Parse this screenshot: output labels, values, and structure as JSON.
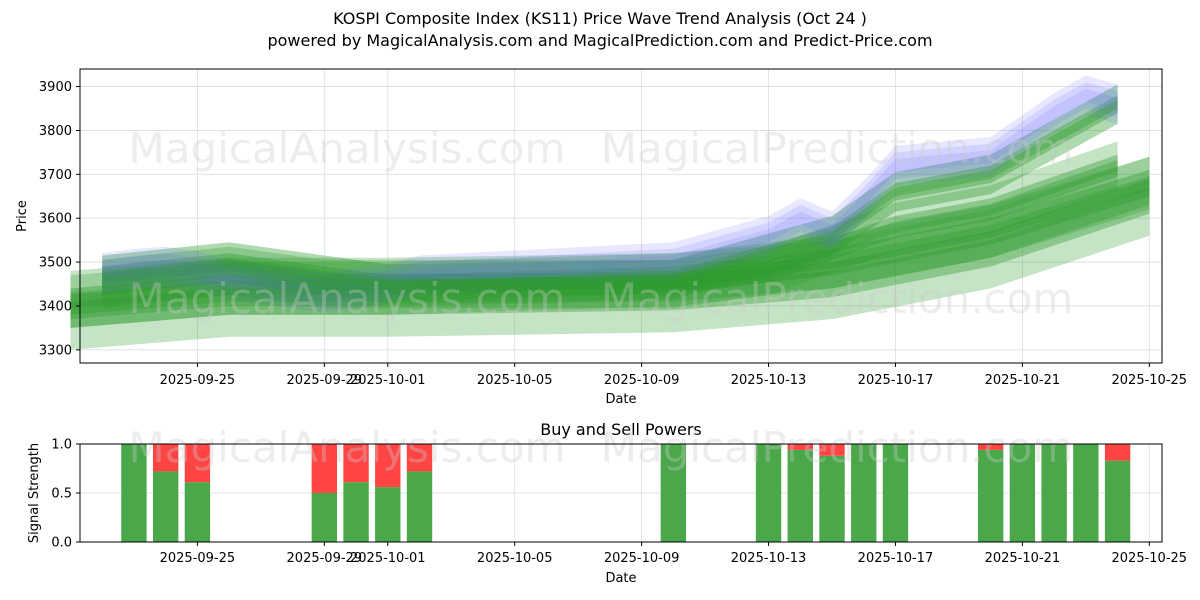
{
  "title": "KOSPI Composite Index (KS11) Price Wave Trend Analysis (Oct 24 )",
  "subtitle": "powered by MagicalAnalysis.com and MagicalPrediction.com and Predict-Price.com",
  "watermarks": [
    "MagicalAnalysis.com",
    "MagicalPrediction.com"
  ],
  "colors": {
    "green": "#2e9a2e",
    "blue": "#6b6bff",
    "buy": "#4aa84a",
    "sell": "#ff4444",
    "grid": "#dddddd"
  },
  "top_panel": {
    "ylabel": "Price",
    "xlabel": "Date"
  },
  "bottom_panel": {
    "title": "Buy and Sell Powers",
    "ylabel": "Signal Strength",
    "xlabel": "Date"
  },
  "chart_data": [
    {
      "type": "area",
      "title": "KOSPI Composite Index (KS11) Price Wave Trend Analysis (Oct 24 )",
      "xlabel": "Date",
      "ylabel": "Price",
      "xlim": [
        "2025-09-21",
        "2025-10-25"
      ],
      "ylim": [
        3270,
        3940
      ],
      "x_ticks": [
        "2025-09-25",
        "2025-09-29",
        "2025-10-01",
        "2025-10-05",
        "2025-10-09",
        "2025-10-13",
        "2025-10-17",
        "2025-10-21",
        "2025-10-25"
      ],
      "y_ticks": [
        3300,
        3400,
        3500,
        3600,
        3700,
        3800,
        3900
      ],
      "grid": true,
      "blue_bands": {
        "x": [
          "2025-09-22",
          "2025-09-23",
          "2025-09-24",
          "2025-09-25",
          "2025-09-26",
          "2025-09-29",
          "2025-09-30",
          "2025-10-01",
          "2025-10-02",
          "2025-10-10",
          "2025-10-13",
          "2025-10-14",
          "2025-10-15",
          "2025-10-16",
          "2025-10-17",
          "2025-10-20",
          "2025-10-21",
          "2025-10-22",
          "2025-10-23",
          "2025-10-24"
        ],
        "center": [
          3475,
          3485,
          3490,
          3480,
          3460,
          3430,
          3440,
          3450,
          3470,
          3500,
          3560,
          3600,
          3570,
          3640,
          3720,
          3740,
          3790,
          3840,
          3880,
          3860
        ],
        "half_widths": [
          15,
          30,
          45
        ]
      },
      "green_bands": [
        {
          "x": [
            "2025-09-22",
            "2025-09-26",
            "2025-10-01",
            "2025-10-10",
            "2025-10-15",
            "2025-10-17",
            "2025-10-20",
            "2025-10-24"
          ],
          "center": [
            3470,
            3500,
            3450,
            3460,
            3560,
            3660,
            3700,
            3860
          ],
          "half_widths": [
            20,
            45
          ]
        },
        {
          "x": [
            "2025-09-22",
            "2025-09-26",
            "2025-09-29",
            "2025-10-01",
            "2025-10-10",
            "2025-10-13",
            "2025-10-17",
            "2025-10-20",
            "2025-10-24"
          ],
          "center": [
            3450,
            3480,
            3450,
            3450,
            3450,
            3480,
            3580,
            3620,
            3720
          ],
          "half_widths": [
            25,
            55
          ]
        },
        {
          "x": [
            "2025-09-21",
            "2025-09-26",
            "2025-10-01",
            "2025-10-10",
            "2025-10-15",
            "2025-10-20",
            "2025-10-25"
          ],
          "center": [
            3410,
            3440,
            3440,
            3460,
            3500,
            3570,
            3680
          ],
          "half_widths": [
            30,
            60
          ]
        },
        {
          "x": [
            "2025-09-21",
            "2025-09-26",
            "2025-10-01",
            "2025-10-10",
            "2025-10-15",
            "2025-10-20",
            "2025-10-25"
          ],
          "center": [
            3390,
            3420,
            3420,
            3430,
            3460,
            3530,
            3650
          ],
          "half_widths": [
            40,
            90
          ]
        }
      ]
    },
    {
      "type": "bar",
      "title": "Buy and Sell Powers",
      "xlabel": "Date",
      "ylabel": "Signal Strength",
      "xlim": [
        "2025-09-21",
        "2025-10-25"
      ],
      "ylim": [
        0,
        1
      ],
      "x_ticks": [
        "2025-09-25",
        "2025-09-29",
        "2025-10-01",
        "2025-10-05",
        "2025-10-09",
        "2025-10-13",
        "2025-10-17",
        "2025-10-21",
        "2025-10-25"
      ],
      "y_ticks": [
        "0.0",
        "0.5",
        "1.0"
      ],
      "grid": true,
      "categories": [
        "2025-09-23",
        "2025-09-24",
        "2025-09-25",
        "2025-09-29",
        "2025-09-30",
        "2025-10-01",
        "2025-10-02",
        "2025-10-10",
        "2025-10-13",
        "2025-10-14",
        "2025-10-15",
        "2025-10-16",
        "2025-10-17",
        "2025-10-20",
        "2025-10-21",
        "2025-10-22",
        "2025-10-23",
        "2025-10-24"
      ],
      "series": [
        {
          "values": [
            1.0,
            0.72,
            0.61,
            0.5,
            0.61,
            0.56,
            0.72,
            1.0,
            1.0,
            0.94,
            0.88,
            1.0,
            1.0,
            0.94,
            1.0,
            1.0,
            1.0,
            0.83
          ]
        },
        {
          "values": [
            0.0,
            0.28,
            0.39,
            0.5,
            0.39,
            0.44,
            0.28,
            0.0,
            0.0,
            0.06,
            0.12,
            0.0,
            0.0,
            0.06,
            0.0,
            0.0,
            0.0,
            0.17
          ]
        }
      ]
    }
  ]
}
